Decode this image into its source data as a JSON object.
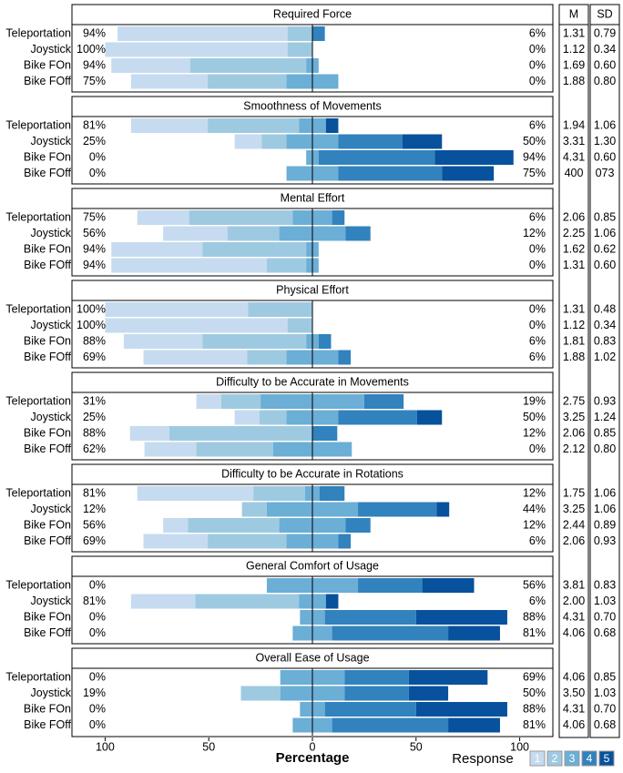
{
  "chart_data": {
    "type": "likert",
    "xlabel": "Percentage",
    "xlim": [
      -116,
      116
    ],
    "xticks": [
      {
        "value": -100,
        "label": "100"
      },
      {
        "value": -50,
        "label": "50"
      },
      0,
      50,
      100
    ],
    "legend_title": "Response",
    "levels": [
      {
        "name": "1",
        "color": "#c6dbef"
      },
      {
        "name": "2",
        "color": "#9ecae1"
      },
      {
        "name": "3",
        "color": "#6baed6"
      },
      {
        "name": "4",
        "color": "#3182bd"
      },
      {
        "name": "5",
        "color": "#08519c"
      }
    ],
    "column_headers": [
      "M",
      "SD"
    ],
    "panels": [
      {
        "title": "Required Force",
        "categories": [
          "Teleportation",
          "Joystick",
          "Bike FOn",
          "Bike FOff"
        ],
        "values": [
          [
            82,
            12,
            0,
            6,
            0
          ],
          [
            88,
            12,
            0,
            0,
            0
          ],
          [
            38,
            56,
            6,
            0,
            0
          ],
          [
            37,
            38,
            25,
            0,
            0
          ]
        ],
        "left_labels": [
          "94%",
          "100%",
          "94%",
          "75%"
        ],
        "right_labels": [
          "6%",
          "0%",
          "0%",
          "0%"
        ],
        "M": [
          "1.31",
          "1.12",
          "1.69",
          "1.88"
        ],
        "SD": [
          "0.79",
          "0.34",
          "0.60",
          "0.80"
        ]
      },
      {
        "title": "Smoothness of Movements",
        "categories": [
          "Teleportation",
          "Joystick",
          "Bike FOn",
          "Bike FOff"
        ],
        "values": [
          [
            37,
            44,
            13,
            0,
            6
          ],
          [
            13,
            12,
            25,
            31,
            19
          ],
          [
            0,
            0,
            6,
            56,
            38
          ],
          [
            0,
            0,
            25,
            50,
            25
          ]
        ],
        "left_labels": [
          "81%",
          "25%",
          "0%",
          "0%"
        ],
        "right_labels": [
          "6%",
          "50%",
          "94%",
          "75%"
        ],
        "M": [
          "1.94",
          "3.31",
          "4.31",
          "400"
        ],
        "SD": [
          "1.06",
          "1.30",
          "0.60",
          "073"
        ]
      },
      {
        "title": "Mental Effort",
        "categories": [
          "Teleportation",
          "Joystick",
          "Bike FOn",
          "Bike FOff"
        ],
        "values": [
          [
            25,
            50,
            19,
            6,
            0
          ],
          [
            31,
            25,
            32,
            12,
            0
          ],
          [
            44,
            50,
            6,
            0,
            0
          ],
          [
            75,
            19,
            6,
            0,
            0
          ]
        ],
        "left_labels": [
          "75%",
          "56%",
          "94%",
          "94%"
        ],
        "right_labels": [
          "6%",
          "12%",
          "0%",
          "0%"
        ],
        "M": [
          "2.06",
          "2.25",
          "1.62",
          "1.31"
        ],
        "SD": [
          "0.85",
          "1.06",
          "0.62",
          "0.60"
        ]
      },
      {
        "title": "Physical Effort",
        "categories": [
          "Teleportation",
          "Joystick",
          "Bike FOn",
          "Bike FOff"
        ],
        "values": [
          [
            69,
            31,
            0,
            0,
            0
          ],
          [
            88,
            12,
            0,
            0,
            0
          ],
          [
            38,
            50,
            6,
            6,
            0
          ],
          [
            50,
            19,
            25,
            6,
            0
          ]
        ],
        "left_labels": [
          "100%",
          "100%",
          "88%",
          "69%"
        ],
        "right_labels": [
          "0%",
          "0%",
          "6%",
          "6%"
        ],
        "M": [
          "1.31",
          "1.12",
          "1.81",
          "1.88"
        ],
        "SD": [
          "0.48",
          "0.34",
          "0.83",
          "1.02"
        ]
      },
      {
        "title": "Difficulty to be Accurate in Movements",
        "categories": [
          "Teleportation",
          "Joystick",
          "Bike FOn",
          "Bike FOff"
        ],
        "values": [
          [
            12,
            19,
            50,
            19,
            0
          ],
          [
            12,
            13,
            25,
            38,
            12
          ],
          [
            19,
            69,
            0,
            12,
            0
          ],
          [
            25,
            37,
            38,
            0,
            0
          ]
        ],
        "left_labels": [
          "31%",
          "25%",
          "88%",
          "62%"
        ],
        "right_labels": [
          "19%",
          "50%",
          "12%",
          "0%"
        ],
        "M": [
          "2.75",
          "3.25",
          "2.06",
          "2.12"
        ],
        "SD": [
          "0.93",
          "1.24",
          "0.85",
          "0.80"
        ]
      },
      {
        "title": "Difficulty to be Accurate in Rotations",
        "categories": [
          "Teleportation",
          "Joystick",
          "Bike FOn",
          "Bike FOff"
        ],
        "values": [
          [
            56,
            25,
            7,
            12,
            0
          ],
          [
            0,
            12,
            44,
            38,
            6
          ],
          [
            12,
            44,
            32,
            12,
            0
          ],
          [
            31,
            38,
            25,
            6,
            0
          ]
        ],
        "left_labels": [
          "81%",
          "12%",
          "56%",
          "69%"
        ],
        "right_labels": [
          "12%",
          "44%",
          "12%",
          "6%"
        ],
        "M": [
          "1.75",
          "3.25",
          "2.44",
          "2.06"
        ],
        "SD": [
          "1.06",
          "1.06",
          "0.89",
          "0.93"
        ]
      },
      {
        "title": "General Comfort of Usage",
        "categories": [
          "Teleportation",
          "Joystick",
          "Bike FOn",
          "Bike FOff"
        ],
        "values": [
          [
            0,
            0,
            44,
            31,
            25
          ],
          [
            31,
            50,
            13,
            0,
            6
          ],
          [
            0,
            0,
            12,
            44,
            44
          ],
          [
            0,
            0,
            19,
            56,
            25
          ]
        ],
        "left_labels": [
          "0%",
          "81%",
          "0%",
          "0%"
        ],
        "right_labels": [
          "56%",
          "6%",
          "88%",
          "81%"
        ],
        "M": [
          "3.81",
          "2.00",
          "4.31",
          "4.06"
        ],
        "SD": [
          "0.83",
          "1.03",
          "0.70",
          "0.68"
        ]
      },
      {
        "title": "Overall Ease of Usage",
        "categories": [
          "Teleportation",
          "Joystick",
          "Bike FOn",
          "Bike FOff"
        ],
        "values": [
          [
            0,
            0,
            31,
            31,
            38
          ],
          [
            0,
            19,
            31,
            31,
            19
          ],
          [
            0,
            0,
            12,
            44,
            44
          ],
          [
            0,
            0,
            19,
            56,
            25
          ]
        ],
        "left_labels": [
          "0%",
          "19%",
          "0%",
          "0%"
        ],
        "right_labels": [
          "69%",
          "50%",
          "88%",
          "81%"
        ],
        "M": [
          "4.06",
          "3.50",
          "4.31",
          "4.06"
        ],
        "SD": [
          "0.85",
          "1.03",
          "0.70",
          "0.68"
        ]
      }
    ]
  }
}
